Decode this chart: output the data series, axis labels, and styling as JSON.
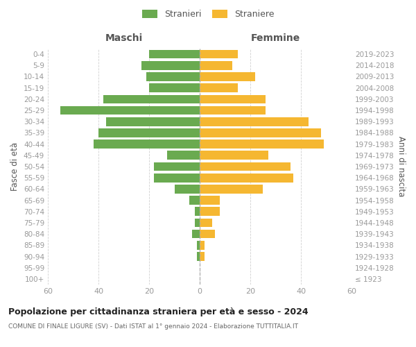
{
  "age_groups": [
    "100+",
    "95-99",
    "90-94",
    "85-89",
    "80-84",
    "75-79",
    "70-74",
    "65-69",
    "60-64",
    "55-59",
    "50-54",
    "45-49",
    "40-44",
    "35-39",
    "30-34",
    "25-29",
    "20-24",
    "15-19",
    "10-14",
    "5-9",
    "0-4"
  ],
  "birth_years": [
    "≤ 1923",
    "1924-1928",
    "1929-1933",
    "1934-1938",
    "1939-1943",
    "1944-1948",
    "1949-1953",
    "1954-1958",
    "1959-1963",
    "1964-1968",
    "1969-1973",
    "1974-1978",
    "1979-1983",
    "1984-1988",
    "1989-1993",
    "1994-1998",
    "1999-2003",
    "2004-2008",
    "2009-2013",
    "2014-2018",
    "2019-2023"
  ],
  "males": [
    0,
    0,
    1,
    1,
    3,
    2,
    2,
    4,
    10,
    18,
    18,
    13,
    42,
    40,
    37,
    55,
    38,
    20,
    21,
    23,
    20
  ],
  "females": [
    0,
    0,
    2,
    2,
    6,
    5,
    8,
    8,
    25,
    37,
    36,
    27,
    49,
    48,
    43,
    26,
    26,
    15,
    22,
    13,
    15
  ],
  "male_color": "#6aaa50",
  "female_color": "#f5b731",
  "male_label": "Stranieri",
  "female_label": "Straniere",
  "title": "Popolazione per cittadinanza straniera per età e sesso - 2024",
  "subtitle": "COMUNE DI FINALE LIGURE (SV) - Dati ISTAT al 1° gennaio 2024 - Elaborazione TUTTITALIA.IT",
  "header_left": "Maschi",
  "header_right": "Femmine",
  "ylabel_left": "Fasce di età",
  "ylabel_right": "Anni di nascita",
  "xlim": 60,
  "background_color": "#ffffff",
  "grid_color": "#d0d0d0",
  "tick_label_color": "#999999",
  "header_color": "#555555",
  "title_color": "#222222",
  "subtitle_color": "#666666",
  "bar_height": 0.78
}
